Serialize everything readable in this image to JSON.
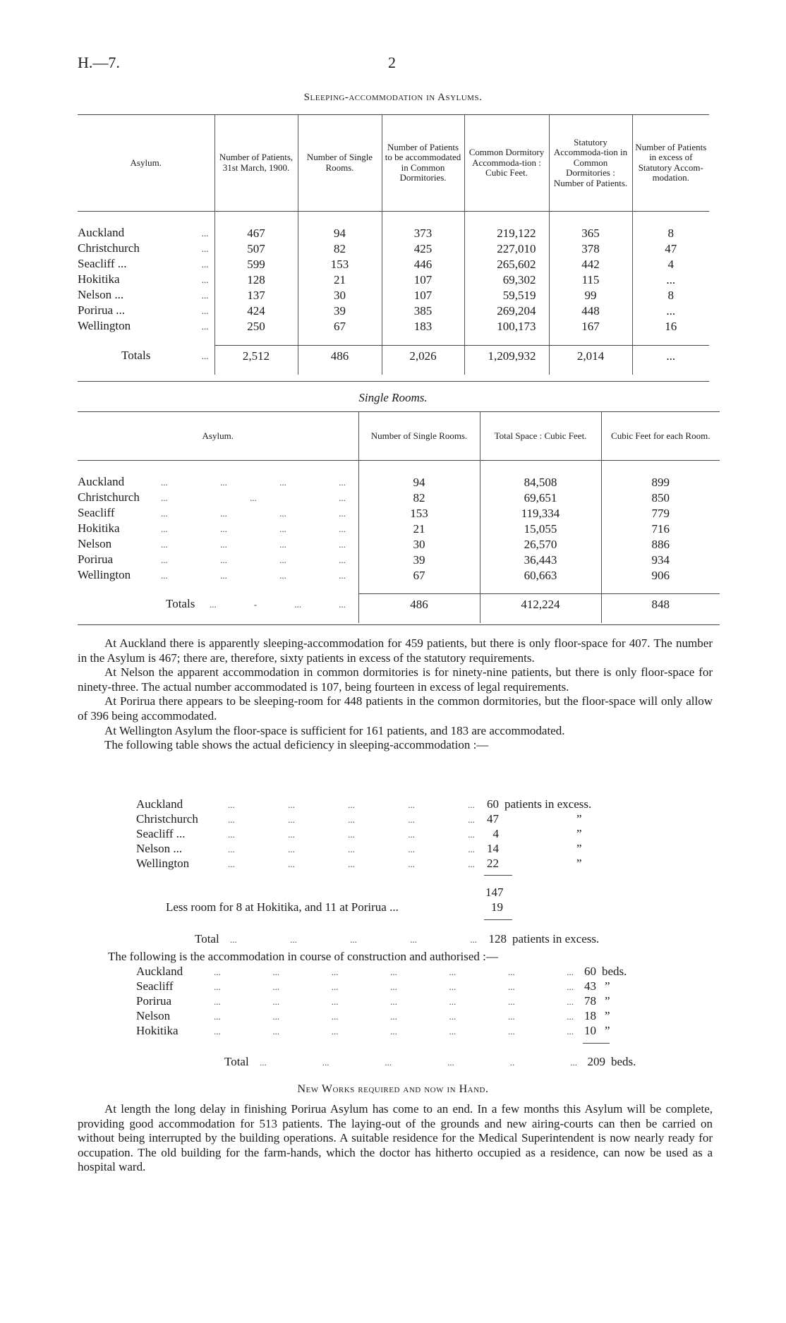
{
  "header": {
    "ref": "H.—7.",
    "page": "2"
  },
  "table1": {
    "title": "Sleeping-accommodation in Asylums.",
    "columns": [
      "Asylum.",
      "Number of Patients, 31st March, 1900.",
      "Number of Single Rooms.",
      "Number of Patients to be accommodated in Common Dormitories.",
      "Common Dormitory Accommoda-tion : Cubic Feet.",
      "Statutory Accommoda-tion in Common Dormitories : Number of Patients.",
      "Number of Patients in excess of Statutory Accom-modation."
    ],
    "rows": [
      {
        "asylum": "Auckland",
        "dots": "...",
        "patients": "467",
        "single": "94",
        "common": "373",
        "cubic": "219,122",
        "statutory": "365",
        "excess": "8"
      },
      {
        "asylum": "Christchurch",
        "dots": "...",
        "patients": "507",
        "single": "82",
        "common": "425",
        "cubic": "227,010",
        "statutory": "378",
        "excess": "47"
      },
      {
        "asylum": "Seacliff ...",
        "dots": "...",
        "patients": "599",
        "single": "153",
        "common": "446",
        "cubic": "265,602",
        "statutory": "442",
        "excess": "4"
      },
      {
        "asylum": "Hokitika",
        "dots": "...",
        "patients": "128",
        "single": "21",
        "common": "107",
        "cubic": "69,302",
        "statutory": "115",
        "excess": "..."
      },
      {
        "asylum": "Nelson ...",
        "dots": "...",
        "patients": "137",
        "single": "30",
        "common": "107",
        "cubic": "59,519",
        "statutory": "99",
        "excess": "8"
      },
      {
        "asylum": "Porirua ...",
        "dots": "...",
        "patients": "424",
        "single": "39",
        "common": "385",
        "cubic": "269,204",
        "statutory": "448",
        "excess": "..."
      },
      {
        "asylum": "Wellington",
        "dots": "...",
        "patients": "250",
        "single": "67",
        "common": "183",
        "cubic": "100,173",
        "statutory": "167",
        "excess": "16"
      }
    ],
    "totals": {
      "asylum": "Totals",
      "dots": "...",
      "patients": "2,512",
      "single": "486",
      "common": "2,026",
      "cubic": "1,209,932",
      "statutory": "2,014",
      "excess": "..."
    }
  },
  "table2": {
    "title": "Single Rooms.",
    "columns": [
      "Asylum.",
      "Number of Single Rooms.",
      "Total Space : Cubic Feet.",
      "Cubic Feet for each Room."
    ],
    "rows": [
      {
        "asylum": "Auckland",
        "dots": "...        ...        ...        ...",
        "single": "94",
        "space": "84,508",
        "per_room": "899"
      },
      {
        "asylum": "Christchurch",
        "dots": "        ...        ...        ...",
        "single": "82",
        "space": "69,651",
        "per_room": "850"
      },
      {
        "asylum": "Seacliff",
        "dots": "...        ...        ...        ...",
        "single": "153",
        "space": "119,334",
        "per_room": "779"
      },
      {
        "asylum": "Hokitika",
        "dots": "...        ...        ...        ...",
        "single": "21",
        "space": "15,055",
        "per_room": "716"
      },
      {
        "asylum": "Nelson",
        "dots": "...        ...        ...        ...",
        "single": "30",
        "space": "26,570",
        "per_room": "886"
      },
      {
        "asylum": "Porirua",
        "dots": "...        ...        ...        ...",
        "single": "39",
        "space": "36,443",
        "per_room": "934"
      },
      {
        "asylum": "Wellington",
        "dots": "...        ...        ...        ...",
        "single": "67",
        "space": "60,663",
        "per_room": "906"
      }
    ],
    "totals": {
      "asylum": "Totals",
      "dots": "...     -  ...        ...",
      "single": "486",
      "space": "412,224",
      "per_room": "848"
    }
  },
  "paragraphs": [
    "At Auckland there is apparently sleeping-accommodation for 459 patients, but there is only floor-space for 407. The number in the Asylum is 467; there are, therefore, sixty patients in excess of the statutory requirements.",
    "At Nelson the apparent accommodation in common dormitories is for ninety-nine patients, but there is only floor-space for ninety-three. The actual number accommodated is 107, being fourteen in excess of legal requirements.",
    "At Porirua there appears to be sleeping-room for 448 patients in the common dormitories, but the floor-space will only allow of 396 being accommodated.",
    "At Wellington Asylum the floor-space is sufficient for 161 patients, and 183 are accommodated.",
    "The following table shows the actual deficiency in sleeping-accommodation :—"
  ],
  "deficiency": {
    "rows": [
      {
        "name": "Auckland",
        "value": "60",
        "unit": "patients in excess."
      },
      {
        "name": "Christchurch",
        "value": "47",
        "unit": "”"
      },
      {
        "name": "Seacliff ...",
        "value": "4",
        "unit": "”"
      },
      {
        "name": "Nelson ...",
        "value": "14",
        "unit": "”"
      },
      {
        "name": "Wellington",
        "value": "22",
        "unit": "”"
      }
    ],
    "subtotal": "147",
    "less_label": "Less room for 8 at Hokitika, and 11 at Porirua ...",
    "less_value": "19",
    "total_label": "Total",
    "total_value": "128",
    "total_unit": "patients in excess."
  },
  "construction": {
    "intro": "The following is the accommodation in course of construction and authorised :—",
    "rows": [
      {
        "name": "Auckland",
        "value": "60",
        "unit": "beds."
      },
      {
        "name": "Seacliff",
        "value": "43",
        "unit": "”"
      },
      {
        "name": "Porirua",
        "value": "78",
        "unit": "”"
      },
      {
        "name": "Nelson",
        "value": "18",
        "unit": "”"
      },
      {
        "name": "Hokitika",
        "value": "10",
        "unit": "”"
      }
    ],
    "total_label": "Total",
    "total_value": "209",
    "total_unit": "beds."
  },
  "new_works": {
    "heading": "New Works required and now in Hand.",
    "paragraph": "At length the long delay in finishing Porirua Asylum has come to an end. In a few months this Asylum will be complete, providing good accommodation for 513 patients. The laying-out of the grounds and new airing-courts can then be carried on without being interrupted by the building operations. A suitable residence for the Medical Superintendent is now nearly ready for occupation. The old building for the farm-hands, which the doctor has hitherto occupied as a residence, can now be used as a hospital ward."
  }
}
